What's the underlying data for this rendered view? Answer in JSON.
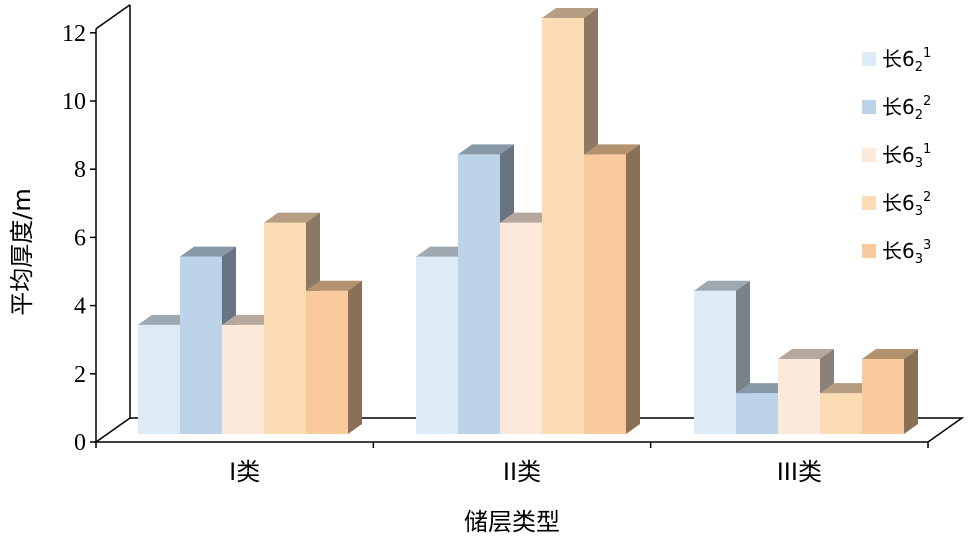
{
  "colors": {
    "frame": "#000000",
    "background": "#ffffff"
  },
  "chart_data": {
    "type": "bar",
    "style": "3d-clustered",
    "title": "",
    "xlabel": "储层类型",
    "ylabel": "平均厚度/m",
    "ylim": [
      0,
      12
    ],
    "yticks": [
      0,
      2,
      4,
      6,
      8,
      10,
      12
    ],
    "grid": false,
    "legend_position": "right",
    "categories": [
      "I类",
      "II类",
      "III类"
    ],
    "series": [
      {
        "name": "长6",
        "sub": "2",
        "sup": "1",
        "color": "#ddebf7",
        "values": [
          3.2,
          5.2,
          4.2
        ]
      },
      {
        "name": "长6",
        "sub": "2",
        "sup": "2",
        "color": "#bdd3ea",
        "values": [
          5.2,
          8.2,
          1.2
        ]
      },
      {
        "name": "长6",
        "sub": "3",
        "sup": "1",
        "color": "#fde9d9",
        "values": [
          3.2,
          6.2,
          2.2
        ]
      },
      {
        "name": "长6",
        "sub": "3",
        "sup": "2",
        "color": "#fbdcb4",
        "values": [
          6.2,
          12.2,
          1.2
        ]
      },
      {
        "name": "长6",
        "sub": "3",
        "sup": "3",
        "color": "#f9cb9c",
        "values": [
          4.2,
          8.2,
          2.2
        ]
      }
    ]
  }
}
